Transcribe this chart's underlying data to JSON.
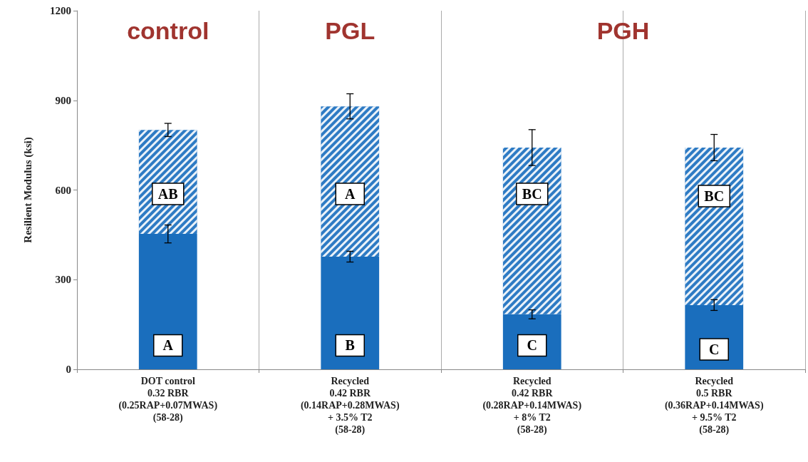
{
  "chart_data": {
    "type": "bar",
    "stacked": true,
    "ylabel": "Resilient Modulus (ksi)",
    "categories": [
      "DOT control\n0.32 RBR\n(0.25RAP+0.07MWAS)\n(58-28)",
      "Recycled\n0.42 RBR\n(0.14RAP+0.28MWAS)\n+ 3.5% T2\n(58-28)",
      "Recycled\n0.42 RBR\n(0.28RAP+0.14MWAS)\n+ 8% T2\n(58-28)",
      "Recycled\n0.5 RBR\n(0.36RAP+0.14MWAS)\n+ 9.5% T2\n(58-28)"
    ],
    "series": [
      {
        "color": "#1a6ebd",
        "values": [
          453,
          377,
          184,
          215
        ],
        "errors": [
          30,
          18,
          15,
          18
        ]
      },
      {
        "color": "#2e7bc4",
        "values": [
          348,
          503,
          558,
          527
        ],
        "errors": [
          22,
          42,
          60,
          44
        ]
      }
    ],
    "ylim": [
      0,
      1200
    ],
    "yticks": [
      0,
      300,
      600,
      900,
      1200
    ],
    "grid": "x",
    "annotations": [
      "control",
      "PGL",
      "PGH",
      {
        "text": "A",
        "x": "DOT control\n0.32 RBR\n(0.25RAP+0.07MWAS)\n(58-28)",
        "y": 80
      },
      {
        "text": "B",
        "x": "Recycled\n0.42 RBR\n(0.14RAP+0.28MWAS)\n+ 3.5% T2\n(58-28)",
        "y": 80
      },
      {
        "text": "C",
        "x": "Recycled\n0.42 RBR\n(0.28RAP+0.14MWAS)\n+ 8% T2\n(58-28)",
        "y": 80
      },
      {
        "text": "C",
        "x": "Recycled\n0.5 RBR\n(0.36RAP+0.14MWAS)\n+ 9.5% T2\n(58-28)",
        "y": 67
      },
      {
        "text": "AB",
        "x": "DOT control\n0.32 RBR\n(0.25RAP+0.07MWAS)\n(58-28)",
        "y": 587
      },
      {
        "text": "A",
        "x": "Recycled\n0.42 RBR\n(0.14RAP+0.28MWAS)\n+ 3.5% T2\n(58-28)",
        "y": 587
      },
      {
        "text": "BC",
        "x": "Recycled\n0.42 RBR\n(0.28RAP+0.14MWAS)\n+ 8% T2\n(58-28)",
        "y": 587
      },
      {
        "text": "BC",
        "x": "Recycled\n0.5 RBR\n(0.36RAP+0.14MWAS)\n+ 9.5% T2\n(58-28)",
        "y": 580
      }
    ]
  }
}
